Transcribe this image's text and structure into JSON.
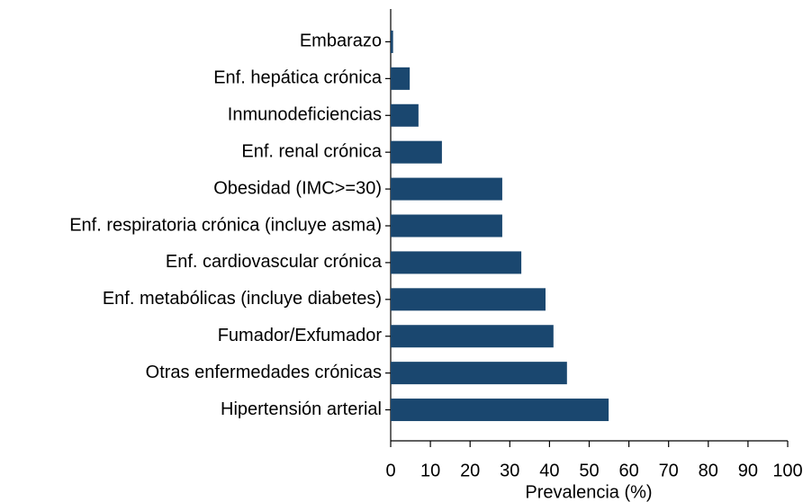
{
  "chart_data": {
    "type": "bar",
    "orientation": "horizontal",
    "x_label": "Prevalencia (%)",
    "categories": [
      "Embarazo",
      "Enf. hepática crónica",
      "Inmunodeficiencias",
      "Enf. renal crónica",
      "Obesidad (IMC>=30)",
      "Enf. respiratoria crónica (incluye asma)",
      "Enf. cardiovascular crónica",
      "Enf. metabólicas (incluye diabetes)",
      "Fumador/Exfumador",
      "Otras enfermedades crónicas",
      "Hipertensión arterial"
    ],
    "values": [
      0.6,
      4.8,
      7.0,
      12.9,
      28.1,
      28.1,
      32.9,
      39.0,
      41.0,
      44.4,
      54.9
    ],
    "color": "#1a476f",
    "xlim": [
      0,
      100
    ],
    "xticks": [
      0,
      10,
      20,
      30,
      40,
      50,
      60,
      70,
      80,
      90,
      100
    ]
  }
}
